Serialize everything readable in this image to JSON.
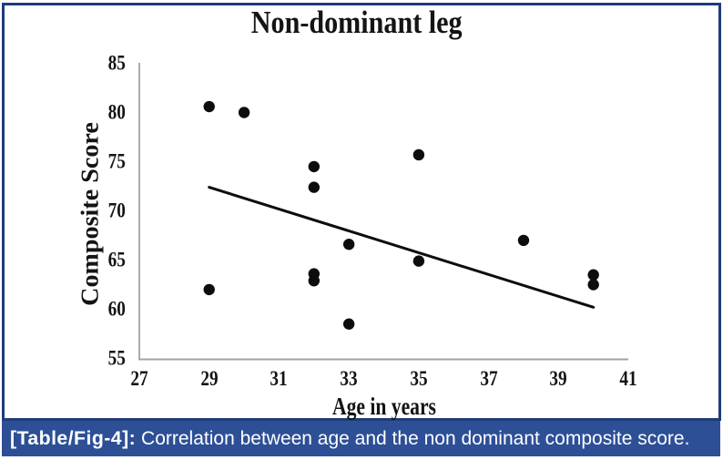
{
  "figure": {
    "border_color": "#1f3c7b",
    "background": "#ffffff"
  },
  "chart_data": {
    "type": "scatter",
    "title": "Non-dominant leg",
    "xlabel": "Age in years",
    "ylabel": "Composite Score",
    "xlim": [
      27,
      41
    ],
    "ylim": [
      55,
      85
    ],
    "xticks": [
      27,
      29,
      31,
      33,
      35,
      37,
      39,
      41
    ],
    "yticks": [
      55,
      60,
      65,
      70,
      75,
      80,
      85
    ],
    "grid": false,
    "legend": false,
    "points": [
      {
        "x": 29,
        "y": 80.6
      },
      {
        "x": 30,
        "y": 80.0
      },
      {
        "x": 32,
        "y": 74.5
      },
      {
        "x": 32,
        "y": 72.4
      },
      {
        "x": 35,
        "y": 75.7
      },
      {
        "x": 33,
        "y": 66.6
      },
      {
        "x": 32,
        "y": 63.6
      },
      {
        "x": 32,
        "y": 62.9
      },
      {
        "x": 29,
        "y": 62.0
      },
      {
        "x": 33,
        "y": 58.5
      },
      {
        "x": 35,
        "y": 64.9
      },
      {
        "x": 38,
        "y": 67.0
      },
      {
        "x": 40,
        "y": 63.5
      },
      {
        "x": 40,
        "y": 62.5
      }
    ],
    "trendline": {
      "x1": 29.0,
      "y1": 72.4,
      "x2": 40.0,
      "y2": 60.2
    },
    "marker_color": "#0d0d0d",
    "trendline_color": "#0d0d0d",
    "axis_color": "#a3a3a3"
  },
  "caption": {
    "label": "[Table/Fig-4]:",
    "text": "Correlation between age and the non dominant composite score.",
    "bar_color": "#2d4f96",
    "text_color": "#ffffff"
  }
}
